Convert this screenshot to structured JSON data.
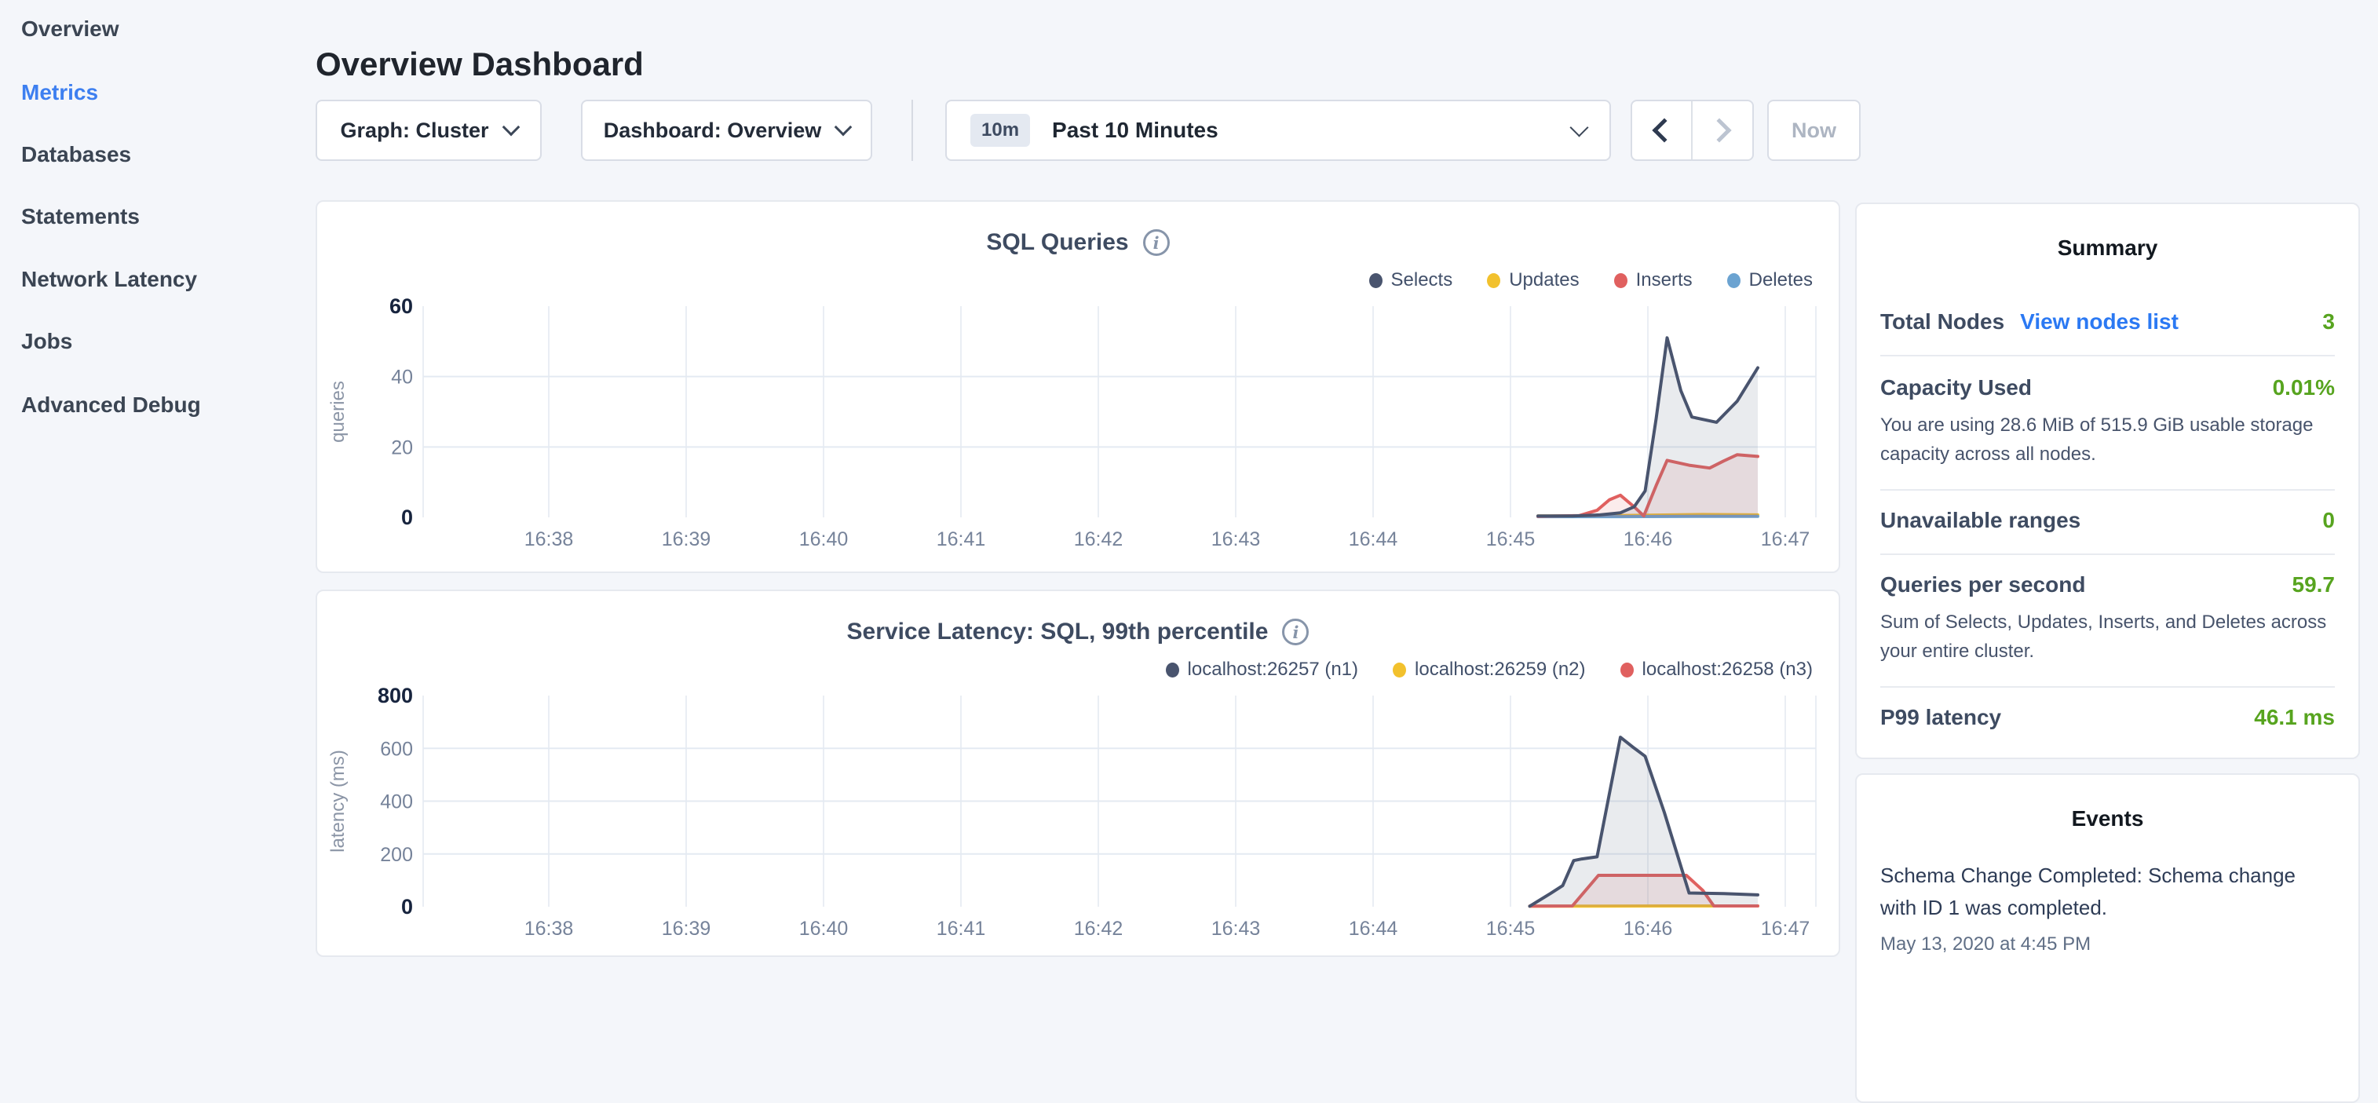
{
  "sidebar": {
    "items": [
      {
        "label": "Overview",
        "active": false
      },
      {
        "label": "Metrics",
        "active": true
      },
      {
        "label": "Databases",
        "active": false
      },
      {
        "label": "Statements",
        "active": false
      },
      {
        "label": "Network Latency",
        "active": false
      },
      {
        "label": "Jobs",
        "active": false
      },
      {
        "label": "Advanced Debug",
        "active": false
      }
    ]
  },
  "header": {
    "title": "Overview Dashboard"
  },
  "controls": {
    "graph_dropdown": "Graph: Cluster",
    "dashboard_dropdown": "Dashboard: Overview",
    "time_badge": "10m",
    "time_label": "Past 10 Minutes",
    "now_label": "Now"
  },
  "colors": {
    "accent_blue": "#3d7ff0",
    "link_blue": "#2b79f3",
    "status_green": "#57a41f",
    "series_navy": "#49546e",
    "series_yellow": "#f2c12d",
    "series_red": "#e0605f",
    "series_blue": "#6ba3d1"
  },
  "charts": [
    {
      "type": "area",
      "title": "SQL Queries",
      "unit": "queries",
      "y_max": 60,
      "y_ticks": [
        0,
        20,
        40,
        60
      ],
      "x_ticks": [
        "16:38",
        "16:39",
        "16:40",
        "16:41",
        "16:42",
        "16:43",
        "16:44",
        "16:45",
        "16:46",
        "16:47"
      ],
      "legend": [
        {
          "label": "Selects",
          "color": "#49546e"
        },
        {
          "label": "Updates",
          "color": "#f2c12d"
        },
        {
          "label": "Inserts",
          "color": "#e0605f"
        },
        {
          "label": "Deletes",
          "color": "#6ba3d1"
        }
      ],
      "series": [
        {
          "name": "Updates",
          "color": "#f2c12d",
          "fill": "none",
          "points": [
            [
              7.2,
              0.4
            ],
            [
              7.6,
              0.4
            ],
            [
              8.0,
              0.6
            ],
            [
              8.4,
              0.8
            ],
            [
              8.8,
              0.7
            ]
          ]
        },
        {
          "name": "Deletes",
          "color": "#6ba3d1",
          "fill": "none",
          "points": [
            [
              7.2,
              0.2
            ],
            [
              7.8,
              0.2
            ],
            [
              8.4,
              0.3
            ],
            [
              8.8,
              0.3
            ]
          ]
        },
        {
          "name": "Inserts",
          "color": "#e0605f",
          "fill": "rgba(224,96,95,0.12)",
          "points": [
            [
              7.2,
              0.3
            ],
            [
              7.5,
              0.5
            ],
            [
              7.63,
              2
            ],
            [
              7.72,
              5
            ],
            [
              7.8,
              6.3
            ],
            [
              7.9,
              3
            ],
            [
              7.97,
              0.4
            ],
            [
              8.06,
              9
            ],
            [
              8.14,
              16.2
            ],
            [
              8.3,
              14.8
            ],
            [
              8.45,
              14
            ],
            [
              8.55,
              16
            ],
            [
              8.65,
              17.8
            ],
            [
              8.8,
              17.3
            ]
          ]
        },
        {
          "name": "Selects",
          "color": "#49546e",
          "fill": "rgba(106,118,140,0.15)",
          "points": [
            [
              7.2,
              0.4
            ],
            [
              7.45,
              0.4
            ],
            [
              7.65,
              0.7
            ],
            [
              7.8,
              1.3
            ],
            [
              7.9,
              3
            ],
            [
              7.98,
              7.5
            ],
            [
              8.06,
              28
            ],
            [
              8.14,
              51
            ],
            [
              8.24,
              36
            ],
            [
              8.32,
              28.5
            ],
            [
              8.5,
              27
            ],
            [
              8.65,
              33
            ],
            [
              8.8,
              42.5
            ]
          ]
        }
      ]
    },
    {
      "type": "area",
      "title": "Service Latency: SQL, 99th percentile",
      "unit": "latency (ms)",
      "y_max": 800,
      "y_ticks": [
        0,
        200,
        400,
        600,
        800
      ],
      "x_ticks": [
        "16:38",
        "16:39",
        "16:40",
        "16:41",
        "16:42",
        "16:43",
        "16:44",
        "16:45",
        "16:46",
        "16:47"
      ],
      "legend": [
        {
          "label": "localhost:26257 (n1)",
          "color": "#49546e"
        },
        {
          "label": "localhost:26259 (n2)",
          "color": "#f2c12d"
        },
        {
          "label": "localhost:26258 (n3)",
          "color": "#e0605f"
        }
      ],
      "series": [
        {
          "name": "localhost:26259 (n2)",
          "color": "#f2c12d",
          "fill": "none",
          "points": [
            [
              7.14,
              2
            ],
            [
              7.6,
              2.5
            ],
            [
              8.2,
              3
            ],
            [
              8.8,
              3
            ]
          ]
        },
        {
          "name": "localhost:26258 (n3)",
          "color": "#e0605f",
          "fill": "rgba(224,96,95,0.12)",
          "points": [
            [
              7.14,
              2
            ],
            [
              7.45,
              3
            ],
            [
              7.64,
              119
            ],
            [
              8.28,
              119
            ],
            [
              8.4,
              62
            ],
            [
              8.48,
              3
            ],
            [
              8.8,
              3
            ]
          ]
        },
        {
          "name": "localhost:26257 (n1)",
          "color": "#49546e",
          "fill": "rgba(106,118,140,0.15)",
          "points": [
            [
              7.14,
              2
            ],
            [
              7.29,
              50
            ],
            [
              7.38,
              80
            ],
            [
              7.46,
              175
            ],
            [
              7.52,
              181
            ],
            [
              7.63,
              189
            ],
            [
              7.8,
              642
            ],
            [
              7.9,
              601
            ],
            [
              7.98,
              570
            ],
            [
              8.12,
              357
            ],
            [
              8.3,
              52
            ],
            [
              8.55,
              50
            ],
            [
              8.8,
              45
            ]
          ]
        }
      ]
    }
  ],
  "summary": {
    "heading": "Summary",
    "rows": [
      {
        "label": "Total Nodes",
        "link": "View nodes list",
        "value": "3"
      },
      {
        "label": "Capacity Used",
        "value": "0.01%",
        "desc": "You are using 28.6 MiB of 515.9 GiB usable storage capacity across all nodes."
      },
      {
        "label": "Unavailable ranges",
        "value": "0"
      },
      {
        "label": "Queries per second",
        "value": "59.7",
        "desc": "Sum of Selects, Updates, Inserts, and Deletes across your entire cluster."
      },
      {
        "label": "P99 latency",
        "value": "46.1 ms"
      }
    ]
  },
  "events": {
    "heading": "Events",
    "items": [
      {
        "text": "Schema Change Completed: Schema change with ID 1 was completed.",
        "time": "May 13, 2020 at 4:45 PM"
      }
    ]
  }
}
